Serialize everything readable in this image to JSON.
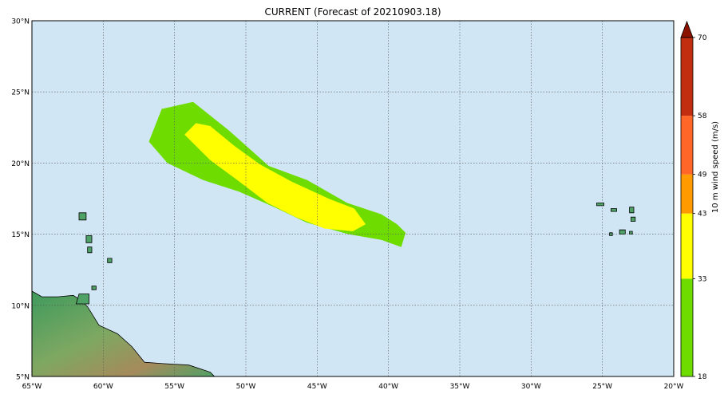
{
  "map": {
    "title": "CURRENT (Forecast of 20210903.18)",
    "extent": {
      "lon_min": -65,
      "lon_max": -20,
      "lat_min": 5,
      "lat_max": 30
    },
    "lat_ticks": [
      30,
      25,
      20,
      15,
      10,
      5
    ],
    "lat_labels": [
      "30°N",
      "25°N",
      "20°N",
      "15°N",
      "10°N",
      "5°N"
    ],
    "lon_ticks": [
      -65,
      -60,
      -55,
      -50,
      -45,
      -40,
      -35,
      -30,
      -25,
      -20
    ],
    "lon_labels": [
      "65°W",
      "60°W",
      "55°W",
      "50°W",
      "45°W",
      "40°W",
      "35°W",
      "30°W",
      "25°W",
      "20°W"
    ],
    "gridlines": true,
    "ocean_color": "#d1e6f5",
    "wind_field": {
      "band_18_33": {
        "color": "#6fdc00",
        "outline": [
          [
            -56.8,
            21.5
          ],
          [
            -55.9,
            23.8
          ],
          [
            -53.7,
            24.3
          ],
          [
            -51.2,
            22.3
          ],
          [
            -48.4,
            19.8
          ],
          [
            -45.7,
            18.8
          ],
          [
            -42.9,
            17.2
          ],
          [
            -40.5,
            16.4
          ],
          [
            -39.4,
            15.7
          ],
          [
            -38.8,
            15.1
          ],
          [
            -39.1,
            14.1
          ],
          [
            -40.5,
            14.6
          ],
          [
            -42.8,
            15.0
          ],
          [
            -45.7,
            15.8
          ],
          [
            -48.0,
            16.9
          ],
          [
            -50.5,
            18.0
          ],
          [
            -53.0,
            18.8
          ],
          [
            -55.5,
            20.0
          ]
        ]
      },
      "band_33_43": {
        "color": "#ffff00",
        "outline": [
          [
            -54.3,
            22.0
          ],
          [
            -53.5,
            22.8
          ],
          [
            -52.5,
            22.6
          ],
          [
            -50.8,
            21.2
          ],
          [
            -49.0,
            19.9
          ],
          [
            -46.8,
            18.7
          ],
          [
            -44.2,
            17.5
          ],
          [
            -42.4,
            16.8
          ],
          [
            -41.6,
            15.7
          ],
          [
            -42.5,
            15.2
          ],
          [
            -44.5,
            15.4
          ],
          [
            -46.5,
            16.2
          ],
          [
            -48.5,
            17.2
          ],
          [
            -50.6,
            18.8
          ],
          [
            -52.5,
            20.2
          ]
        ]
      }
    },
    "colorbar": {
      "label": "10 m wind speed (m/s)",
      "extend": "max",
      "levels": [
        18,
        33,
        43,
        49,
        58,
        70
      ],
      "tick_labels": [
        "18",
        "33",
        "43",
        "49",
        "58",
        "70"
      ],
      "colors": [
        "#6fdc00",
        "#ffff00",
        "#ff9a00",
        "#ff6628",
        "#c22f10"
      ],
      "extend_color": "#8c1200"
    },
    "land": {
      "color_lowland": "#4fa266",
      "color_highland": "#a58a5c",
      "coastline_color": "#000000",
      "regions": [
        {
          "name": "south-america",
          "points": [
            [
              -65,
              11.0
            ],
            [
              -64.3,
              10.6
            ],
            [
              -63.2,
              10.6
            ],
            [
              -62.1,
              10.7
            ],
            [
              -61.5,
              10.3
            ],
            [
              -61.1,
              9.9
            ],
            [
              -60.3,
              8.6
            ],
            [
              -59.0,
              8.0
            ],
            [
              -58.0,
              7.1
            ],
            [
              -57.1,
              6.0
            ],
            [
              -55.8,
              5.9
            ],
            [
              -54.0,
              5.8
            ],
            [
              -52.5,
              5.3
            ],
            [
              -52.2,
              5.0
            ],
            [
              -65,
              5.0
            ]
          ]
        },
        {
          "name": "trinidad",
          "points": [
            [
              -61.9,
              10.1
            ],
            [
              -61.0,
              10.1
            ],
            [
              -61.0,
              10.8
            ],
            [
              -61.7,
              10.8
            ]
          ]
        },
        {
          "name": "guadeloupe",
          "points": [
            [
              -61.7,
              16.0
            ],
            [
              -61.2,
              16.0
            ],
            [
              -61.2,
              16.5
            ],
            [
              -61.7,
              16.5
            ]
          ]
        },
        {
          "name": "martinique",
          "points": [
            [
              -61.2,
              14.4
            ],
            [
              -60.8,
              14.4
            ],
            [
              -60.8,
              14.9
            ],
            [
              -61.2,
              14.9
            ]
          ]
        },
        {
          "name": "barbados",
          "points": [
            [
              -59.7,
              13.0
            ],
            [
              -59.4,
              13.0
            ],
            [
              -59.4,
              13.3
            ],
            [
              -59.7,
              13.3
            ]
          ]
        },
        {
          "name": "st-lucia",
          "points": [
            [
              -61.1,
              13.7
            ],
            [
              -60.8,
              13.7
            ],
            [
              -60.8,
              14.1
            ],
            [
              -61.1,
              14.1
            ]
          ]
        },
        {
          "name": "tobago",
          "points": [
            [
              -60.8,
              11.1
            ],
            [
              -60.5,
              11.1
            ],
            [
              -60.5,
              11.35
            ],
            [
              -60.8,
              11.35
            ]
          ]
        },
        {
          "name": "cape-verde-1",
          "points": [
            [
              -25.4,
              17.0
            ],
            [
              -24.9,
              17.0
            ],
            [
              -24.9,
              17.2
            ],
            [
              -25.4,
              17.2
            ]
          ]
        },
        {
          "name": "cape-verde-2",
          "points": [
            [
              -24.4,
              16.6
            ],
            [
              -24.0,
              16.6
            ],
            [
              -24.0,
              16.8
            ],
            [
              -24.4,
              16.8
            ]
          ]
        },
        {
          "name": "cape-verde-3",
          "points": [
            [
              -23.1,
              16.5
            ],
            [
              -22.8,
              16.5
            ],
            [
              -22.8,
              16.9
            ],
            [
              -23.1,
              16.9
            ]
          ]
        },
        {
          "name": "cape-verde-4",
          "points": [
            [
              -23.0,
              15.9
            ],
            [
              -22.7,
              15.9
            ],
            [
              -22.7,
              16.2
            ],
            [
              -23.0,
              16.2
            ]
          ]
        },
        {
          "name": "cape-verde-5",
          "points": [
            [
              -23.8,
              15.0
            ],
            [
              -23.4,
              15.0
            ],
            [
              -23.4,
              15.3
            ],
            [
              -23.8,
              15.3
            ]
          ]
        },
        {
          "name": "cape-verde-6",
          "points": [
            [
              -24.5,
              14.9
            ],
            [
              -24.3,
              14.9
            ],
            [
              -24.3,
              15.1
            ],
            [
              -24.5,
              15.1
            ]
          ]
        },
        {
          "name": "cape-verde-7",
          "points": [
            [
              -23.1,
              15.0
            ],
            [
              -22.9,
              15.0
            ],
            [
              -22.9,
              15.2
            ],
            [
              -23.1,
              15.2
            ]
          ]
        }
      ]
    }
  }
}
